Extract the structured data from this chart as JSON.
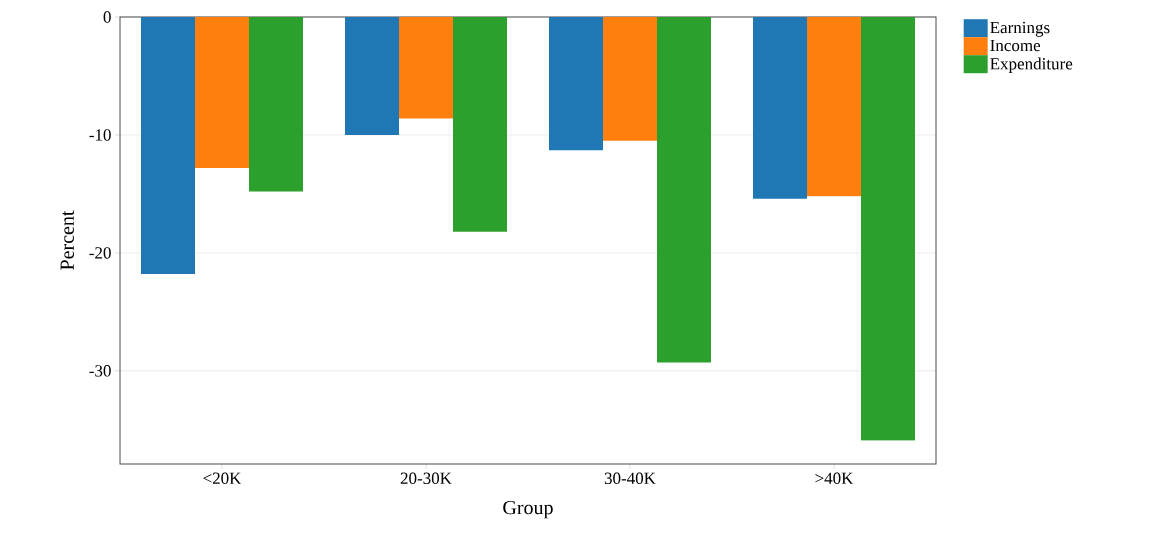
{
  "chart_data": {
    "type": "bar",
    "xlabel": "Group",
    "ylabel": "Percent",
    "categories": [
      "<20K",
      "20-30K",
      "30-40K",
      ">40K"
    ],
    "series": [
      {
        "name": "Earnings",
        "color": "#1f77b4",
        "values": [
          -21.8,
          -10.0,
          -11.3,
          -15.4
        ]
      },
      {
        "name": "Income",
        "color": "#ff7f0e",
        "values": [
          -12.8,
          -8.6,
          -10.5,
          -15.2
        ]
      },
      {
        "name": "Expenditure",
        "color": "#2ca02c",
        "values": [
          -14.8,
          -18.2,
          -29.3,
          -35.9
        ]
      }
    ],
    "ylim": [
      -37.9,
      0
    ],
    "yticks": [
      -30,
      -20,
      -10,
      0
    ],
    "grid": "y",
    "legend": "right"
  }
}
